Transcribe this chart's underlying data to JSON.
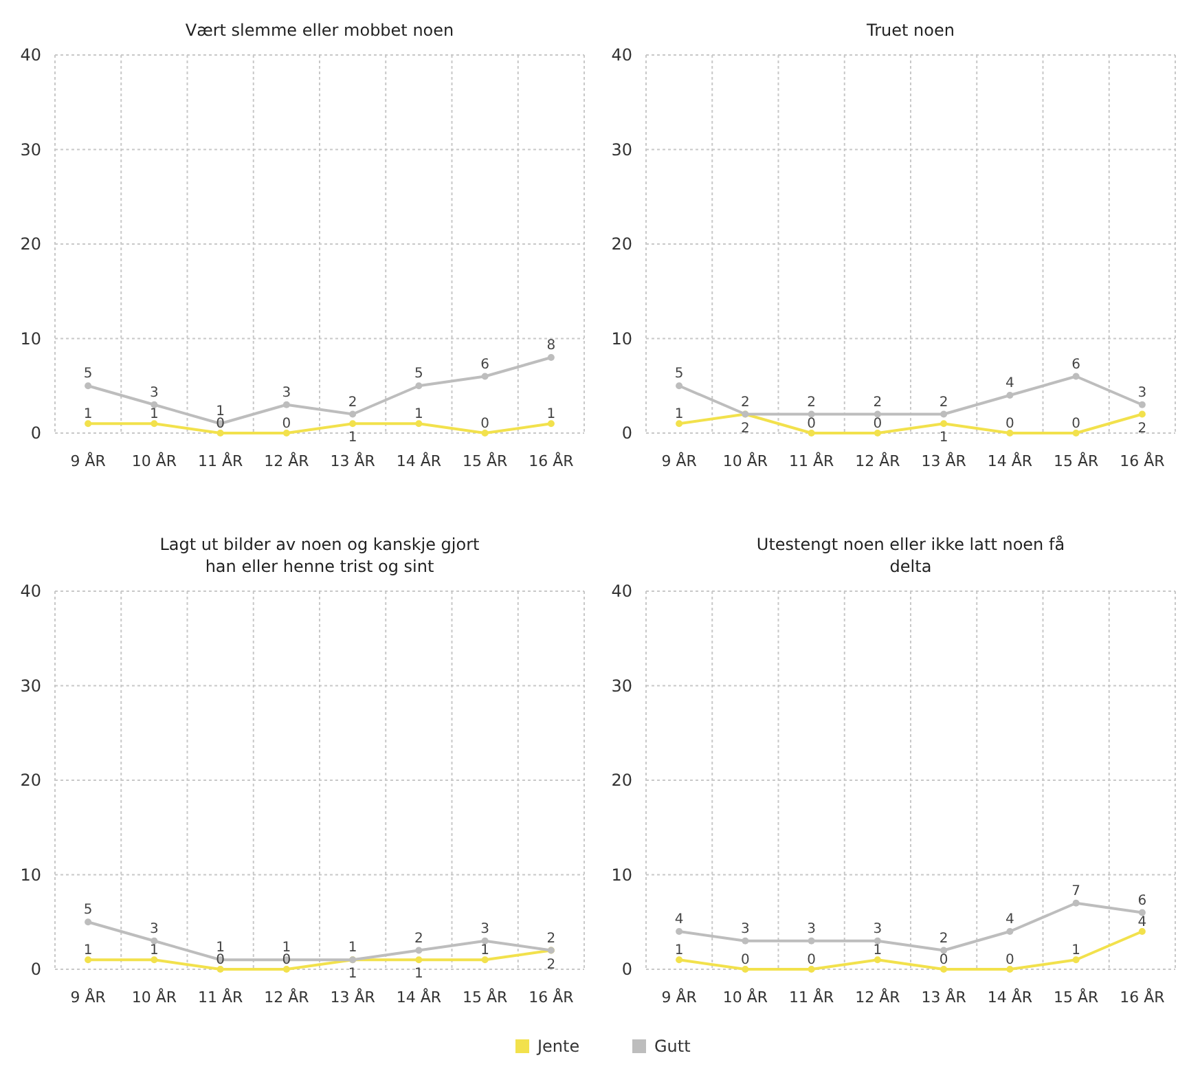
{
  "chart_data": [
    {
      "type": "line",
      "title": "Vært slemme eller mobbet noen",
      "categories": [
        "9 ÅR",
        "10 ÅR",
        "11 ÅR",
        "12 ÅR",
        "13 ÅR",
        "14 ÅR",
        "15 ÅR",
        "16 ÅR"
      ],
      "ylim": [
        0,
        40
      ],
      "yticks": [
        0,
        10,
        20,
        30,
        40
      ],
      "grid": true,
      "marker": "circle",
      "data_labels": true,
      "legend": "bottom",
      "series": [
        {
          "name": "Jente",
          "color": "#f2e14c",
          "values": [
            1,
            1,
            0,
            0,
            1,
            1,
            0,
            1
          ]
        },
        {
          "name": "Gutt",
          "color": "#bdbdbd",
          "values": [
            5,
            3,
            1,
            3,
            2,
            5,
            6,
            8
          ]
        }
      ]
    },
    {
      "type": "line",
      "title": "Truet noen",
      "categories": [
        "9 ÅR",
        "10 ÅR",
        "11 ÅR",
        "12 ÅR",
        "13 ÅR",
        "14 ÅR",
        "15 ÅR",
        "16 ÅR"
      ],
      "ylim": [
        0,
        40
      ],
      "yticks": [
        0,
        10,
        20,
        30,
        40
      ],
      "grid": true,
      "marker": "circle",
      "data_labels": true,
      "series": [
        {
          "color": "#f2e14c",
          "values": [
            1,
            2,
            0,
            0,
            1,
            0,
            0,
            2
          ]
        },
        {
          "color": "#bdbdbd",
          "values": [
            5,
            2,
            2,
            2,
            2,
            4,
            6,
            3
          ]
        }
      ]
    },
    {
      "type": "line",
      "title": "Lagt ut bilder av noen og kanskje gjort han eller henne trist og sint",
      "categories": [
        "9 ÅR",
        "10 ÅR",
        "11 ÅR",
        "12 ÅR",
        "13 ÅR",
        "14 ÅR",
        "15 ÅR",
        "16 ÅR"
      ],
      "ylim": [
        0,
        40
      ],
      "yticks": [
        0,
        10,
        20,
        30,
        40
      ],
      "grid": true,
      "marker": "circle",
      "data_labels": true,
      "series": [
        {
          "color": "#f2e14c",
          "values": [
            1,
            1,
            0,
            0,
            1,
            1,
            1,
            2
          ]
        },
        {
          "color": "#bdbdbd",
          "values": [
            5,
            3,
            1,
            1,
            1,
            2,
            3,
            2
          ]
        }
      ]
    },
    {
      "type": "line",
      "title": "Utestengt noen eller ikke latt noen få delta",
      "categories": [
        "9 ÅR",
        "10 ÅR",
        "11 ÅR",
        "12 ÅR",
        "13 ÅR",
        "14 ÅR",
        "15 ÅR",
        "16 ÅR"
      ],
      "ylim": [
        0,
        40
      ],
      "yticks": [
        0,
        10,
        20,
        30,
        40
      ],
      "grid": true,
      "marker": "circle",
      "data_labels": true,
      "series": [
        {
          "color": "#f2e14c",
          "values": [
            1,
            0,
            0,
            1,
            0,
            0,
            1,
            4
          ]
        },
        {
          "color": "#bdbdbd",
          "values": [
            4,
            3,
            3,
            3,
            2,
            4,
            7,
            6
          ]
        }
      ]
    }
  ]
}
